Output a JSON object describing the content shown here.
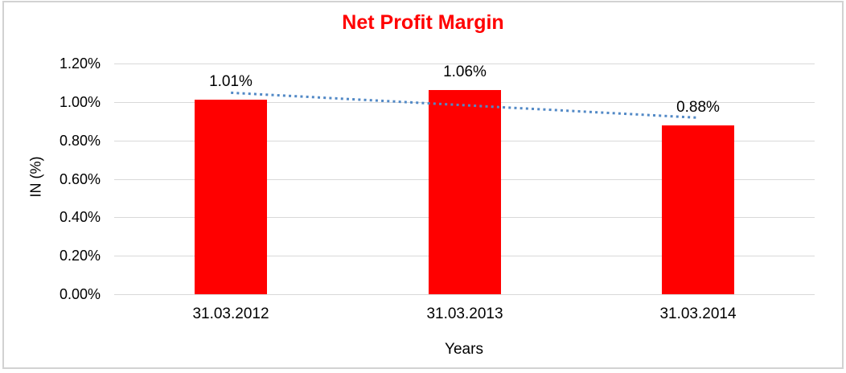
{
  "chart_data": {
    "type": "bar",
    "title": "Net Profit Margin",
    "categories": [
      "31.03.2012",
      "31.03.2013",
      "31.03.2014"
    ],
    "values": [
      1.01,
      1.06,
      0.88
    ],
    "value_labels": [
      "1.01%",
      "1.06%",
      "0.88%"
    ],
    "xlabel": "Years",
    "ylabel": "IN (%)",
    "ylim": [
      0,
      1.2
    ],
    "ytick_values": [
      0,
      0.2,
      0.4,
      0.6,
      0.8,
      1.0,
      1.2
    ],
    "ytick_labels": [
      "0.00%",
      "0.20%",
      "0.40%",
      "0.60%",
      "0.80%",
      "1.00%",
      "1.20%"
    ],
    "grid": true,
    "legend": "none",
    "trendline": {
      "type": "linear",
      "style": "dotted",
      "points": [
        1.048,
        0.983,
        0.918
      ]
    },
    "colors": {
      "bar": "#ff0000",
      "title": "#ff0000",
      "trendline": "#5289c6",
      "gridline": "#d9d9d9",
      "text": "#000000",
      "frame_border": "#d2d2d2",
      "background": "#ffffff"
    }
  }
}
